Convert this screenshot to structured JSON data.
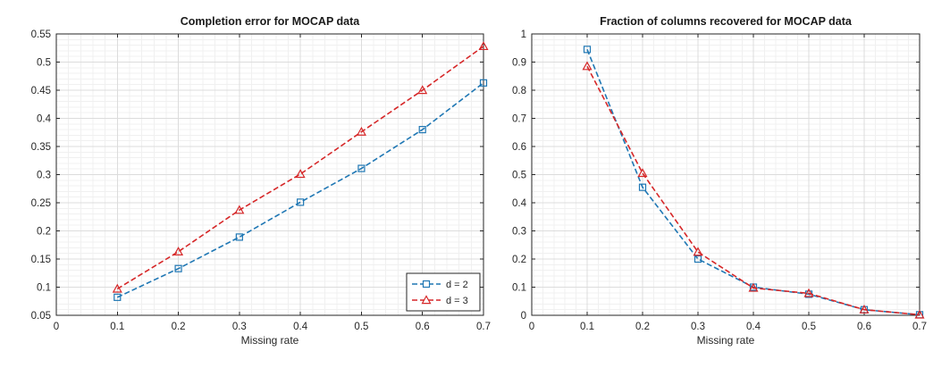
{
  "chart_data": [
    {
      "type": "line",
      "title": "Completion error for MOCAP data",
      "xlabel": "Missing rate",
      "ylabel": "",
      "xlim": [
        0,
        0.7
      ],
      "ylim": [
        0.05,
        0.55
      ],
      "x_ticks": [
        0,
        0.1,
        0.2,
        0.3,
        0.4,
        0.5,
        0.6,
        0.7
      ],
      "x_tick_labels": [
        "0",
        "0.1",
        "0.2",
        "0.3",
        "0.4",
        "0.5",
        "0.6",
        "0.7"
      ],
      "y_ticks": [
        0.05,
        0.1,
        0.15,
        0.2,
        0.25,
        0.3,
        0.35,
        0.4,
        0.45,
        0.5,
        0.55
      ],
      "y_tick_labels": [
        "0.05",
        "0.1",
        "0.15",
        "0.2",
        "0.25",
        "0.3",
        "0.35",
        "0.4",
        "0.45",
        "0.5",
        "0.55"
      ],
      "grid": true,
      "minor_grid": true,
      "legend_position": "bottom-right",
      "x": [
        0.1,
        0.2,
        0.3,
        0.4,
        0.5,
        0.6,
        0.7
      ],
      "series": [
        {
          "name": "d = 2",
          "color": "#1f77b4",
          "marker": "square",
          "line_style": "dashed",
          "values": [
            0.082,
            0.133,
            0.189,
            0.251,
            0.311,
            0.38,
            0.463
          ]
        },
        {
          "name": "d = 3",
          "color": "#d62728",
          "marker": "triangle",
          "line_style": "dashed",
          "values": [
            0.097,
            0.163,
            0.237,
            0.301,
            0.376,
            0.45,
            0.528
          ]
        }
      ]
    },
    {
      "type": "line",
      "title": "Fraction of columns recovered for MOCAP data",
      "xlabel": "Missing rate",
      "ylabel": "",
      "xlim": [
        0,
        0.7
      ],
      "ylim": [
        0,
        1
      ],
      "x_ticks": [
        0,
        0.1,
        0.2,
        0.3,
        0.4,
        0.5,
        0.6,
        0.7
      ],
      "x_tick_labels": [
        "0",
        "0.1",
        "0.2",
        "0.3",
        "0.4",
        "0.5",
        "0.6",
        "0.7"
      ],
      "y_ticks": [
        0,
        0.1,
        0.2,
        0.3,
        0.4,
        0.5,
        0.6,
        0.7,
        0.8,
        0.9,
        1
      ],
      "y_tick_labels": [
        "0",
        "0.1",
        "0.2",
        "0.3",
        "0.4",
        "0.5",
        "0.6",
        "0.7",
        "0.8",
        "0.9",
        "1"
      ],
      "grid": true,
      "minor_grid": true,
      "x": [
        0.1,
        0.2,
        0.3,
        0.4,
        0.5,
        0.6,
        0.7
      ],
      "series": [
        {
          "color": "#1f77b4",
          "marker": "square",
          "line_style": "dashed",
          "values": [
            0.945,
            0.455,
            0.2,
            0.1,
            0.075,
            0.02,
            0.002
          ]
        },
        {
          "color": "#d62728",
          "marker": "triangle",
          "line_style": "dashed",
          "values": [
            0.885,
            0.505,
            0.225,
            0.097,
            0.078,
            0.02,
            0.002
          ]
        }
      ]
    }
  ]
}
